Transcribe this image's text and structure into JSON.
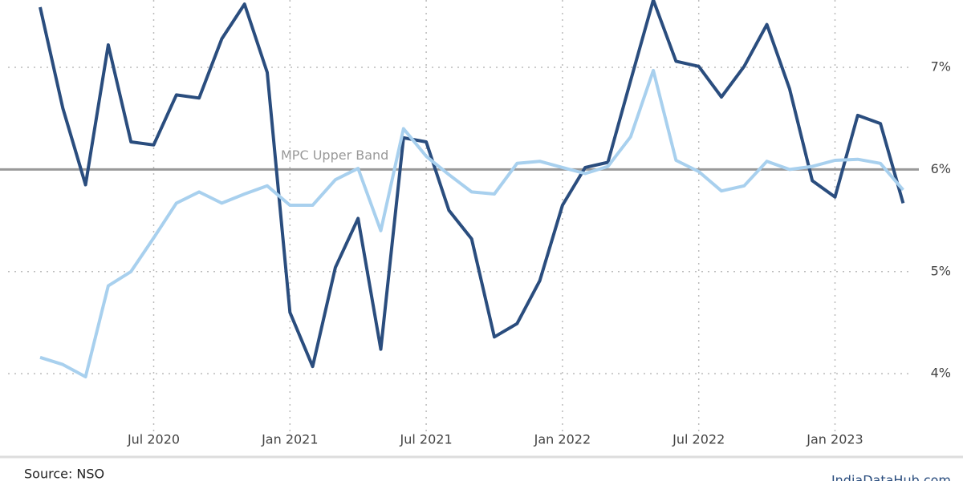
{
  "chart_data": {
    "type": "line",
    "x": [
      "2020-02",
      "2020-03",
      "2020-04",
      "2020-05",
      "2020-06",
      "2020-07",
      "2020-08",
      "2020-09",
      "2020-10",
      "2020-11",
      "2020-12",
      "2021-01",
      "2021-02",
      "2021-03",
      "2021-04",
      "2021-05",
      "2021-06",
      "2021-07",
      "2021-08",
      "2021-09",
      "2021-10",
      "2021-11",
      "2021-12",
      "2022-01",
      "2022-02",
      "2022-03",
      "2022-04",
      "2022-05",
      "2022-06",
      "2022-07",
      "2022-08",
      "2022-09",
      "2022-10",
      "2022-11",
      "2022-12",
      "2023-01",
      "2023-02",
      "2023-03",
      "2023-04"
    ],
    "series": [
      {
        "color": "#2a4d7e",
        "values": [
          7.59,
          6.6,
          5.85,
          7.22,
          6.27,
          6.24,
          6.73,
          6.7,
          7.28,
          7.62,
          6.95,
          4.6,
          4.07,
          5.04,
          5.52,
          4.24,
          6.31,
          6.27,
          5.6,
          5.32,
          4.36,
          4.49,
          4.91,
          5.65,
          6.02,
          6.07,
          6.87,
          7.66,
          7.06,
          7.01,
          6.71,
          7.01,
          7.42,
          6.79,
          5.89,
          5.73,
          6.53,
          6.45,
          5.67
        ]
      },
      {
        "color": "#a8d0ee",
        "values": [
          4.16,
          4.09,
          3.97,
          4.86,
          5.0,
          5.33,
          5.67,
          5.78,
          5.67,
          5.76,
          5.84,
          5.65,
          5.65,
          5.9,
          6.01,
          5.4,
          6.4,
          6.13,
          5.95,
          5.78,
          5.76,
          6.06,
          6.08,
          6.02,
          5.96,
          6.03,
          6.32,
          6.97,
          6.09,
          5.98,
          5.79,
          5.84,
          6.08,
          6.0,
          6.03,
          6.09,
          6.1,
          6.06,
          5.8
        ]
      }
    ],
    "ylim": [
      3.42,
      7.66
    ],
    "yticks": [
      {
        "value": 4,
        "label": "4%"
      },
      {
        "value": 5,
        "label": "5%"
      },
      {
        "value": 6,
        "label": "6%"
      },
      {
        "value": 7,
        "label": "7%"
      }
    ],
    "xticks": [
      {
        "value": "2020-07",
        "label": "Jul 2020"
      },
      {
        "value": "2021-01",
        "label": "Jan 2021"
      },
      {
        "value": "2021-07",
        "label": "Jul 2021"
      },
      {
        "value": "2022-01",
        "label": "Jan 2022"
      },
      {
        "value": "2022-07",
        "label": "Jul 2022"
      },
      {
        "value": "2023-01",
        "label": "Jan 2023"
      }
    ],
    "reference_line": {
      "value": 6,
      "label": "MPC Upper Band"
    },
    "grid": true,
    "source": "Source: NSO",
    "credit": "IndiaDataHub.com"
  }
}
